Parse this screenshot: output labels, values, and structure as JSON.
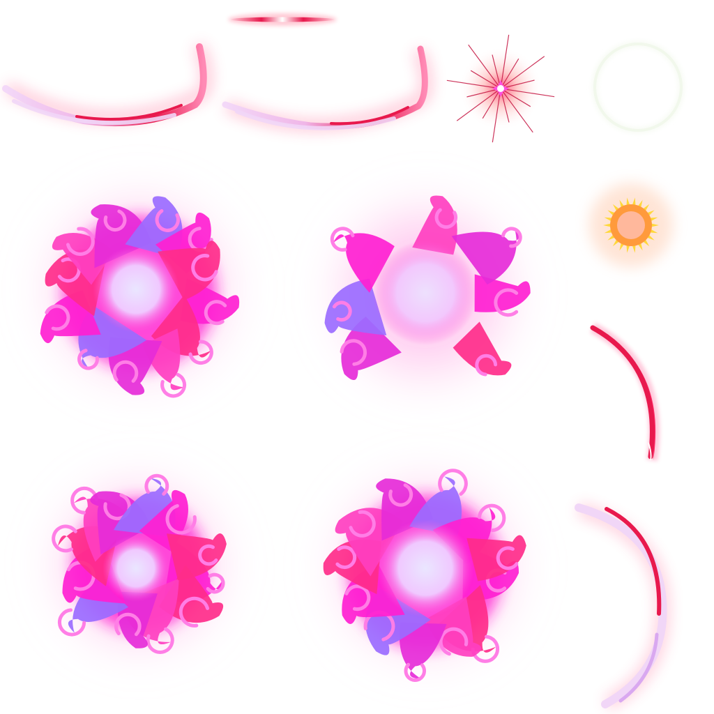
{
  "sheet": {
    "kind": "effect sprite sheet",
    "background": "#ffffff",
    "palette": {
      "magenta": "#ff1fd1",
      "hot_pink": "#ff2d8a",
      "crimson": "#e8194d",
      "violet": "#9b6bff",
      "lavender_core": "#eae6ff",
      "orange_glow": "#ff9a3c",
      "yellow": "#ffd83a"
    },
    "sprites": [
      {
        "id": "streak-thin",
        "icon": "light-streak-icon"
      },
      {
        "id": "slash-arc-1",
        "icon": "slash-arc-icon"
      },
      {
        "id": "slash-arc-2",
        "icon": "slash-arc-icon"
      },
      {
        "id": "star-burst",
        "icon": "star-burst-icon"
      },
      {
        "id": "faint-ring",
        "icon": "ring-icon"
      },
      {
        "id": "flame-burst-1",
        "icon": "flame-burst-icon"
      },
      {
        "id": "flame-burst-2",
        "icon": "flame-ring-icon"
      },
      {
        "id": "sun-orb",
        "icon": "sun-orb-icon"
      },
      {
        "id": "crescent-arc",
        "icon": "crescent-icon"
      },
      {
        "id": "flame-burst-3",
        "icon": "flame-burst-icon"
      },
      {
        "id": "flame-burst-4",
        "icon": "flame-burst-icon"
      },
      {
        "id": "slash-arc-vertical",
        "icon": "slash-arc-icon"
      }
    ]
  }
}
